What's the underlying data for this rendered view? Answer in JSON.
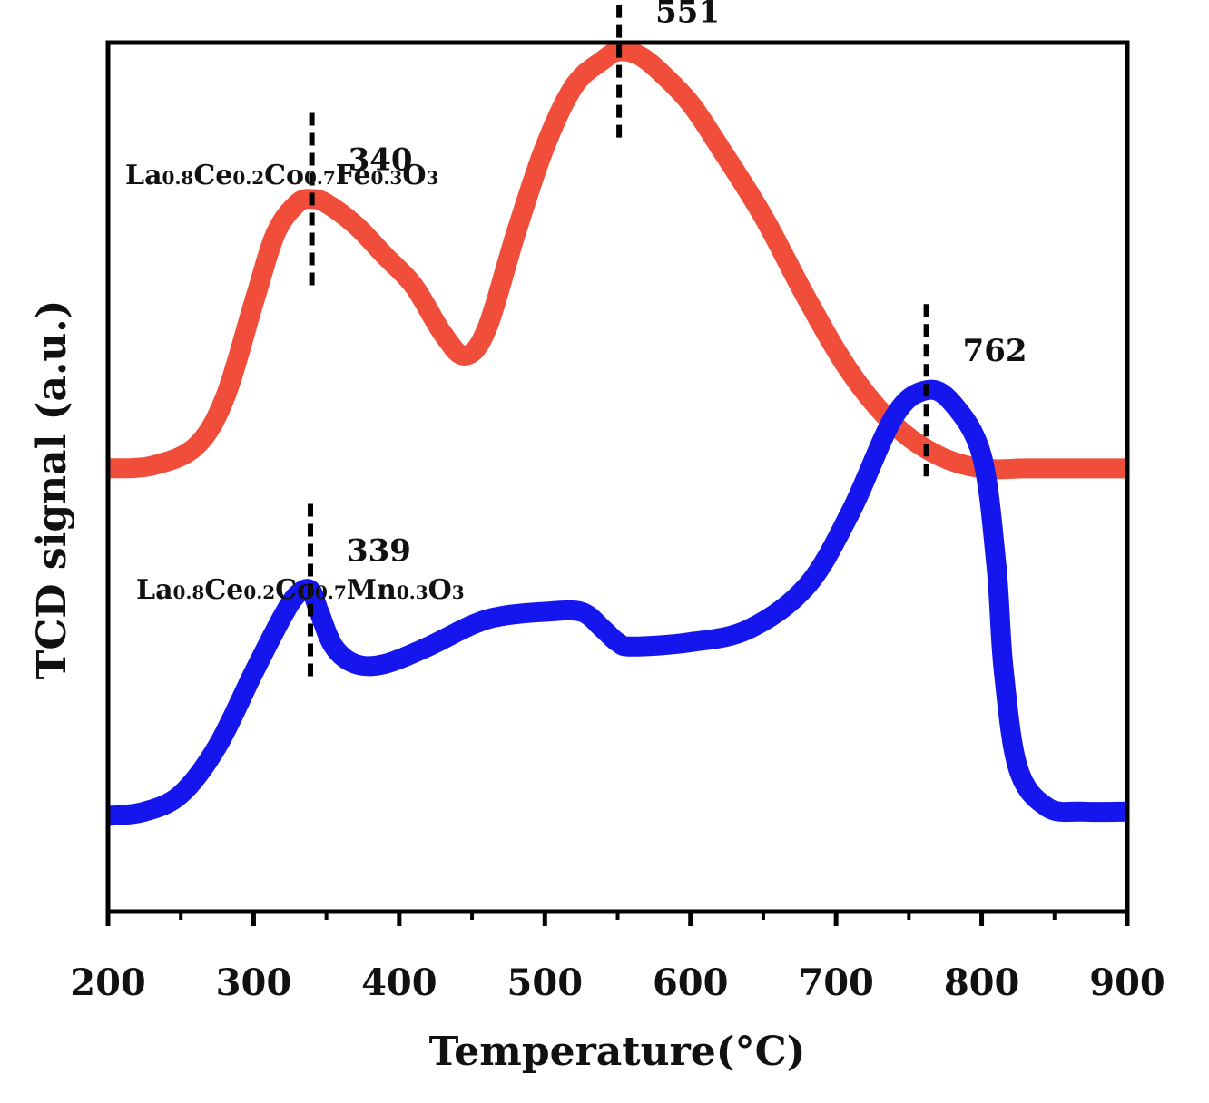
{
  "chart_data": {
    "type": "line",
    "title": "",
    "xlabel": "Temperature(°C)",
    "ylabel": "TCD signal (a.u.)",
    "xlim": [
      200,
      900
    ],
    "ylim": [
      0,
      100
    ],
    "xticks": [
      200,
      300,
      400,
      500,
      600,
      700,
      800,
      900
    ],
    "xtick_labels": [
      "200",
      "300",
      "400",
      "500",
      "600",
      "700",
      "800",
      "900"
    ],
    "yticks_visible": false,
    "grid": false,
    "series": [
      {
        "name": "La0.8Ce0.2Co0.7Fe0.3O3",
        "label_parts": [
          {
            "t": "La",
            "sub": false
          },
          {
            "t": "0.8",
            "sub": true
          },
          {
            "t": "Ce",
            "sub": false
          },
          {
            "t": "0.2",
            "sub": true
          },
          {
            "t": "Co",
            "sub": false
          },
          {
            "t": "0.7",
            "sub": true
          },
          {
            "t": "Fe",
            "sub": false
          },
          {
            "t": "0.3",
            "sub": true
          },
          {
            "t": "O",
            "sub": false
          },
          {
            "t": "3",
            "sub": true
          }
        ],
        "color": "#f04e3a",
        "x": [
          200,
          230,
          260,
          280,
          300,
          315,
          330,
          340,
          350,
          370,
          390,
          410,
          430,
          445,
          460,
          480,
          500,
          520,
          540,
          551,
          565,
          580,
          600,
          620,
          650,
          680,
          710,
          740,
          770,
          800,
          830,
          860,
          900
        ],
        "y": [
          51,
          51.3,
          53.5,
          59,
          70,
          78,
          81.5,
          82,
          81.5,
          79,
          75.5,
          72,
          66.5,
          64,
          67,
          78,
          88,
          95,
          98,
          99,
          98.5,
          96.5,
          93,
          88,
          80,
          70.5,
          62,
          56,
          52.5,
          51,
          51,
          51,
          51
        ],
        "peaks": [
          340,
          551
        ],
        "peak_labels": [
          "340",
          "551"
        ]
      },
      {
        "name": "La0.8Ce0.2Co0.7Mn0.3O3",
        "label_parts": [
          {
            "t": "La",
            "sub": false
          },
          {
            "t": "0.8",
            "sub": true
          },
          {
            "t": "Ce",
            "sub": false
          },
          {
            "t": "0.2",
            "sub": true
          },
          {
            "t": "Co",
            "sub": false
          },
          {
            "t": "0.7",
            "sub": true
          },
          {
            "t": "Mn",
            "sub": false
          },
          {
            "t": "0.3",
            "sub": true
          },
          {
            "t": "O",
            "sub": false
          },
          {
            "t": "3",
            "sub": true
          }
        ],
        "color": "#1515ee",
        "x": [
          200,
          225,
          250,
          275,
          300,
          320,
          330,
          339,
          345,
          355,
          370,
          390,
          420,
          450,
          470,
          500,
          525,
          540,
          550,
          560,
          600,
          640,
          680,
          710,
          740,
          762,
          780,
          800,
          810,
          815,
          825,
          845,
          870,
          900
        ],
        "y": [
          11,
          11.5,
          13.5,
          19,
          27.5,
          34,
          36.5,
          37,
          34.5,
          30.5,
          28.5,
          28.5,
          30.5,
          33,
          34,
          34.5,
          34.5,
          32.5,
          31,
          30.5,
          31,
          32.5,
          37.5,
          46,
          57,
          60,
          58.5,
          52.5,
          40,
          28,
          16.5,
          12,
          11.5,
          11.5
        ],
        "peaks": [
          339,
          762
        ],
        "peak_labels": [
          "339",
          "762"
        ]
      }
    ]
  }
}
